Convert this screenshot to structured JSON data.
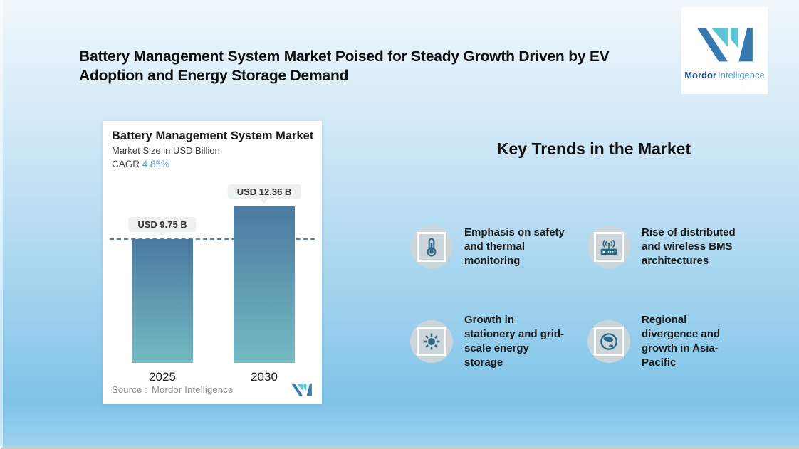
{
  "header": {
    "title": "Battery Management System Market Poised for Steady Growth Driven by EV Adoption and Energy Storage Demand"
  },
  "brand": {
    "name_bold": "Mordor",
    "name_light": "Intelligence"
  },
  "chart_data": {
    "type": "bar",
    "title": "Battery Management System Market",
    "subtitle": "Market Size in USD Billion",
    "cagr_label": "CAGR",
    "cagr_value": "4.85%",
    "categories": [
      "2025",
      "2030"
    ],
    "values": [
      9.75,
      12.36
    ],
    "value_labels": [
      "USD 9.75 B",
      "USD 12.36 B"
    ],
    "ylabel": "Market Size in USD Billion",
    "xlabel": "",
    "reference_line_at": 9.75,
    "legend": "none",
    "source_label": "Source :",
    "source_value": "Mordor Intelligence",
    "colors": {
      "bar_top": "#4a7aa0",
      "bar_bottom": "#74bac2",
      "dashed_line": "#4d86b2",
      "cagr_accent": "#5b9ccd"
    }
  },
  "trends": {
    "heading": "Key Trends in the Market",
    "items": [
      {
        "icon": "thermometer-icon",
        "label": "Emphasis on safety\nand thermal\nmonitoring"
      },
      {
        "icon": "wireless-router-icon",
        "label": "Rise of distributed\nand wireless BMS\narchitectures"
      },
      {
        "icon": "sun-icon",
        "label": "Growth in\nstationery and grid-\nscale energy\nstorage"
      },
      {
        "icon": "globe-icon",
        "label": "Regional\ndivergence and\ngrowth in Asia-\nPacific"
      }
    ]
  },
  "theme": {
    "background_top": "#f0f6fb",
    "background_bottom": "#7fc3e9",
    "logo_dark_blue": "#3579b1",
    "logo_teal": "#56c5d5",
    "icon_color": "#2a6785",
    "icon_circle": "#ccd5da"
  }
}
